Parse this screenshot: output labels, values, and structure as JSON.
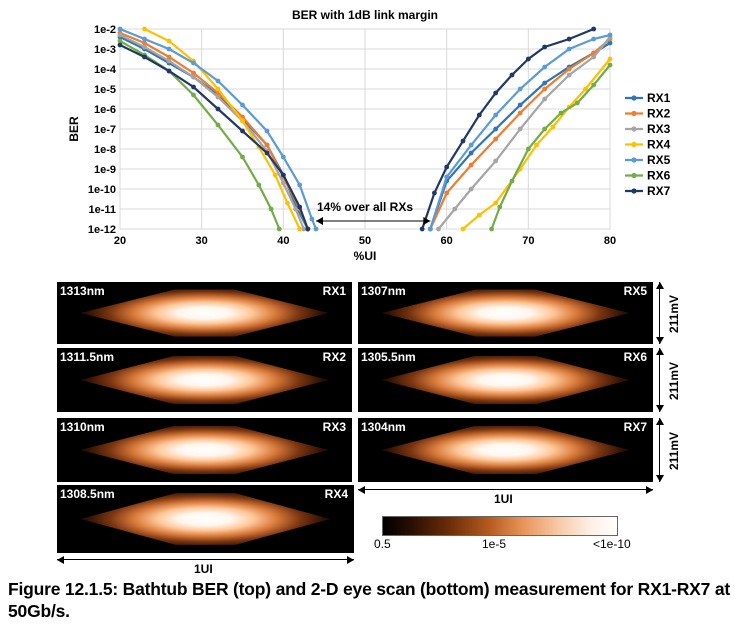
{
  "chart_data": {
    "type": "line",
    "title": "BER with 1dB link margin",
    "xlabel": "%UI",
    "ylabel": "BER",
    "xlim": [
      20,
      80
    ],
    "x_ticks": [
      "20",
      "30",
      "40",
      "50",
      "60",
      "70",
      "80"
    ],
    "y_ticks": [
      "1e-2",
      "1e-3",
      "1e-4",
      "1e-5",
      "1e-6",
      "1e-7",
      "1e-8",
      "1e-9",
      "1e-10",
      "1e-11",
      "1e-12"
    ],
    "ylog_range": [
      -12,
      -2
    ],
    "legend_position": "right",
    "annotation": "14% over all RXs",
    "annotation_span": [
      44,
      58
    ],
    "series": [
      {
        "name": "RX1",
        "color": "#2e75b6",
        "left": [
          [
            20,
            -2.4
          ],
          [
            23,
            -3.0
          ],
          [
            26,
            -3.7
          ],
          [
            29,
            -4.4
          ],
          [
            32,
            -5.3
          ],
          [
            35,
            -6.5
          ],
          [
            38,
            -7.8
          ],
          [
            40,
            -9.3
          ],
          [
            41.5,
            -10.8
          ],
          [
            43,
            -12
          ]
        ],
        "right": [
          [
            58,
            -12
          ],
          [
            60,
            -9.6
          ],
          [
            63,
            -8.2
          ],
          [
            66,
            -7.0
          ],
          [
            69,
            -5.8
          ],
          [
            72,
            -4.7
          ],
          [
            75,
            -3.9
          ],
          [
            78,
            -3.2
          ],
          [
            80,
            -2.7
          ]
        ]
      },
      {
        "name": "RX2",
        "color": "#ed7d31",
        "left": [
          [
            20,
            -2.2
          ],
          [
            23,
            -2.7
          ],
          [
            26,
            -3.4
          ],
          [
            29,
            -4.2
          ],
          [
            32,
            -5.2
          ],
          [
            35,
            -6.4
          ],
          [
            38,
            -7.8
          ],
          [
            40,
            -9.4
          ],
          [
            42,
            -11.0
          ],
          [
            43,
            -12
          ]
        ],
        "right": [
          [
            58,
            -12
          ],
          [
            60,
            -10.2
          ],
          [
            63,
            -8.8
          ],
          [
            66,
            -7.5
          ],
          [
            69,
            -6.2
          ],
          [
            72,
            -5.0
          ],
          [
            75,
            -4.0
          ],
          [
            78,
            -3.2
          ],
          [
            80,
            -2.5
          ]
        ]
      },
      {
        "name": "RX3",
        "color": "#a5a5a5",
        "left": [
          [
            20,
            -2.3
          ],
          [
            23,
            -2.9
          ],
          [
            26,
            -3.6
          ],
          [
            29,
            -4.4
          ],
          [
            32,
            -5.4
          ],
          [
            35,
            -6.6
          ],
          [
            38,
            -8.1
          ],
          [
            40,
            -9.7
          ],
          [
            41.5,
            -11.0
          ],
          [
            42.5,
            -12
          ]
        ],
        "right": [
          [
            59,
            -12
          ],
          [
            61,
            -11.0
          ],
          [
            63,
            -10.0
          ],
          [
            66,
            -8.6
          ],
          [
            69,
            -7.0
          ],
          [
            72,
            -5.5
          ],
          [
            75,
            -4.3
          ],
          [
            78,
            -3.4
          ],
          [
            80,
            -2.4
          ]
        ]
      },
      {
        "name": "RX4",
        "color": "#ffc000",
        "left": [
          [
            23,
            -2.0
          ],
          [
            26,
            -2.6
          ],
          [
            29,
            -3.6
          ],
          [
            32,
            -5.0
          ],
          [
            35,
            -6.6
          ],
          [
            37,
            -7.9
          ],
          [
            39,
            -9.3
          ],
          [
            40.5,
            -10.7
          ],
          [
            42,
            -12
          ]
        ],
        "right": [
          [
            62,
            -12
          ],
          [
            64,
            -11.3
          ],
          [
            66,
            -10.7
          ],
          [
            69,
            -9.0
          ],
          [
            71,
            -7.8
          ],
          [
            73,
            -6.9
          ],
          [
            75,
            -5.9
          ],
          [
            77,
            -5.0
          ],
          [
            80,
            -3.5
          ]
        ]
      },
      {
        "name": "RX5",
        "color": "#5b9bd5",
        "left": [
          [
            20,
            -2.0
          ],
          [
            23,
            -2.5
          ],
          [
            26,
            -3.0
          ],
          [
            29,
            -3.7
          ],
          [
            32,
            -4.6
          ],
          [
            35,
            -5.8
          ],
          [
            38,
            -7.1
          ],
          [
            40,
            -8.4
          ],
          [
            42,
            -9.8
          ],
          [
            43.5,
            -11.5
          ],
          [
            44,
            -12
          ]
        ],
        "right": [
          [
            58,
            -12
          ],
          [
            60,
            -9.4
          ],
          [
            63,
            -7.8
          ],
          [
            66,
            -6.3
          ],
          [
            69,
            -5.0
          ],
          [
            72,
            -3.9
          ],
          [
            75,
            -3.0
          ],
          [
            78,
            -2.5
          ],
          [
            80,
            -2.3
          ]
        ]
      },
      {
        "name": "RX6",
        "color": "#70ad47",
        "left": [
          [
            20,
            -2.6
          ],
          [
            23,
            -3.3
          ],
          [
            26,
            -4.1
          ],
          [
            29,
            -5.3
          ],
          [
            32,
            -6.8
          ],
          [
            35,
            -8.4
          ],
          [
            37,
            -9.8
          ],
          [
            38.5,
            -11.0
          ],
          [
            39.5,
            -12
          ]
        ],
        "right": [
          [
            65.5,
            -12
          ],
          [
            66.5,
            -10.9
          ],
          [
            68,
            -9.6
          ],
          [
            70,
            -8.0
          ],
          [
            72,
            -7.0
          ],
          [
            74,
            -6.2
          ],
          [
            76,
            -5.7
          ],
          [
            78,
            -4.8
          ],
          [
            80,
            -3.8
          ]
        ]
      },
      {
        "name": "RX7",
        "color": "#1f3864",
        "left": [
          [
            20,
            -2.8
          ],
          [
            23,
            -3.4
          ],
          [
            26,
            -4.1
          ],
          [
            29,
            -4.9
          ],
          [
            32,
            -6.0
          ],
          [
            35,
            -7.1
          ],
          [
            38,
            -8.2
          ],
          [
            40,
            -9.3
          ],
          [
            42,
            -10.9
          ],
          [
            43,
            -12
          ]
        ],
        "right": [
          [
            57,
            -12
          ],
          [
            58.5,
            -10.2
          ],
          [
            60,
            -8.9
          ],
          [
            62,
            -7.6
          ],
          [
            64,
            -6.3
          ],
          [
            66,
            -5.2
          ],
          [
            68,
            -4.3
          ],
          [
            70,
            -3.5
          ],
          [
            72,
            -2.9
          ],
          [
            75,
            -2.5
          ],
          [
            78,
            -2.0
          ]
        ]
      }
    ]
  },
  "eyes": [
    {
      "id": "RX1",
      "wavelength": "1313nm"
    },
    {
      "id": "RX2",
      "wavelength": "1311.5nm"
    },
    {
      "id": "RX3",
      "wavelength": "1310nm"
    },
    {
      "id": "RX4",
      "wavelength": "1308.5nm"
    },
    {
      "id": "RX5",
      "wavelength": "1307nm"
    },
    {
      "id": "RX6",
      "wavelength": "1305.5nm"
    },
    {
      "id": "RX7",
      "wavelength": "1304nm"
    }
  ],
  "eye_vertical_label": "211mV",
  "ui_label": "1UI",
  "colorbar": {
    "labels": [
      "0.5",
      "1e-5",
      "<1e-10"
    ]
  },
  "caption": "Figure 12.1.5: Bathtub BER (top) and 2-D eye scan (bottom) measurement for RX1-RX7 at 50Gb/s."
}
